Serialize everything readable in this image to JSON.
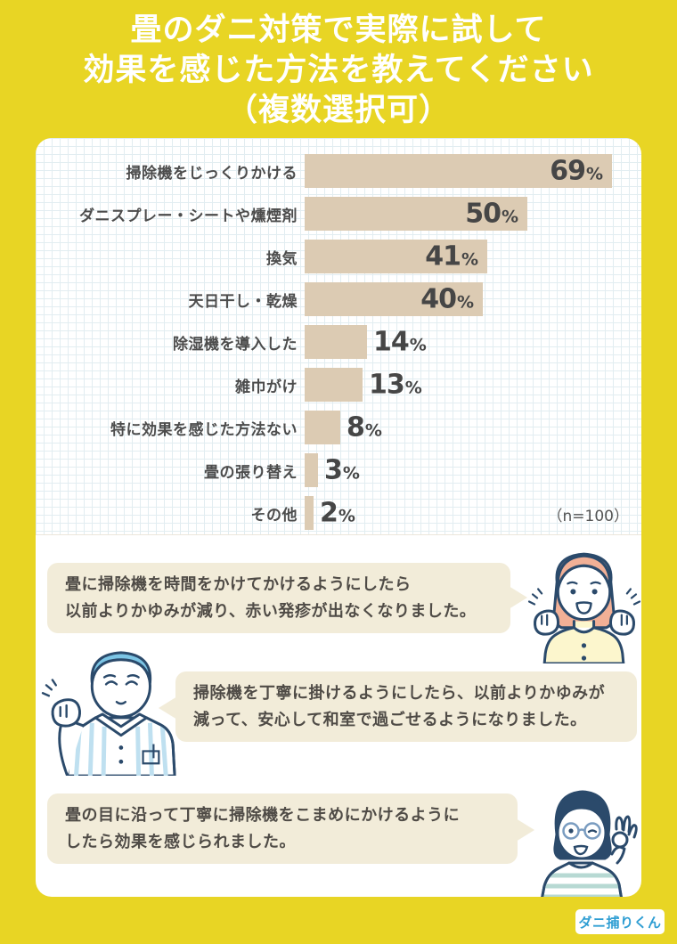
{
  "header": {
    "title_lines": [
      "畳のダニ対策で実際に試して",
      "効果を感じた方法を教えてください",
      "（複数選択可）"
    ]
  },
  "chart_data": {
    "type": "bar",
    "orientation": "horizontal",
    "title": "畳のダニ対策で実際に試して効果を感じた方法を教えてください（複数選択可）",
    "categories": [
      "掃除機をじっくりかける",
      "ダニスプレー・シートや燻煙剤",
      "換気",
      "天日干し・乾燥",
      "除湿機を導入した",
      "雑巾がけ",
      "特に効果を感じた方法ない",
      "畳の張り替え",
      "その他"
    ],
    "values": [
      69,
      50,
      41,
      40,
      14,
      13,
      8,
      3,
      2
    ],
    "unit": "%",
    "xlim": [
      0,
      75
    ],
    "grid": true,
    "sample_label": "（n=100）",
    "bar_color": "#dccbb3"
  },
  "testimonials": [
    {
      "character": "woman-excited",
      "bubble_side": "right",
      "lines": [
        "畳に掃除機を時間をかけてかけるようにしたら",
        "以前よりかゆみが減り、赤い発疹が出なくなりました。"
      ]
    },
    {
      "character": "man-cheering",
      "bubble_side": "left",
      "lines": [
        "掃除機を丁寧に掛けるようにしたら、以前よりかゆみが",
        "減って、安心して和室で過ごせるようになりました。"
      ]
    },
    {
      "character": "woman-ok-sign",
      "bubble_side": "right",
      "lines": [
        "畳の目に沿って丁寧に掃除機をこまめにかけるように",
        "したら効果を感じられました。"
      ]
    }
  ],
  "footer": {
    "logo_text": "ダニ捕りくん"
  },
  "colors": {
    "background_yellow": "#e8d524",
    "bubble_cream": "#f2ecd9",
    "bar_beige": "#dccbb3",
    "outline_navy": "#2b4a6b",
    "logo_blue": "#2f9ed3"
  }
}
